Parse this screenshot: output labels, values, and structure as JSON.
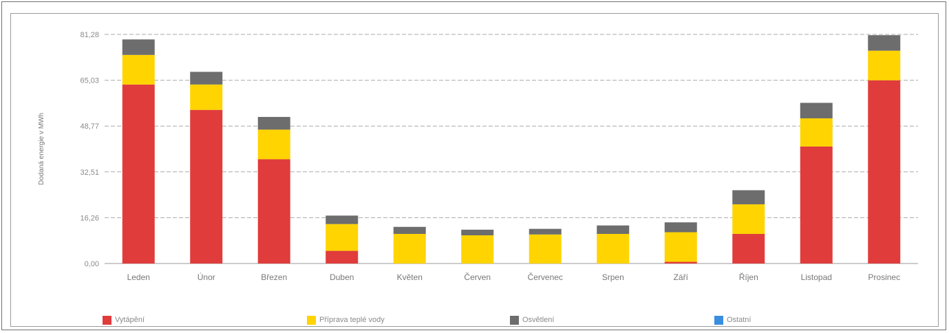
{
  "chart_data": {
    "type": "bar",
    "stacked": true,
    "title": "",
    "xlabel": "",
    "ylabel": "Dodaná energie v MWh",
    "ylim": [
      0,
      81.28
    ],
    "yticks": [
      "0,00",
      "16,26",
      "32,51",
      "48,77",
      "65,03",
      "81,28"
    ],
    "grid": true,
    "legend_position": "bottom",
    "categories": [
      "Leden",
      "Únor",
      "Březen",
      "Duben",
      "Květen",
      "Červen",
      "Červenec",
      "Srpen",
      "Září",
      "Říjen",
      "Listopad",
      "Prosinec"
    ],
    "series": [
      {
        "name": "Vytápění",
        "color": "#e03c3c",
        "values": [
          63.5,
          54.5,
          37.0,
          4.5,
          0.0,
          0.0,
          0.0,
          0.0,
          0.6,
          10.5,
          41.5,
          65.0
        ]
      },
      {
        "name": "Příprava teplé vody",
        "color": "#ffd400",
        "values": [
          10.5,
          9.0,
          10.5,
          9.5,
          10.5,
          10.0,
          10.3,
          10.5,
          10.5,
          10.5,
          10.0,
          10.5
        ]
      },
      {
        "name": "Osvětlení",
        "color": "#6d6d6d",
        "values": [
          5.5,
          4.5,
          4.5,
          3.0,
          2.5,
          2.0,
          2.0,
          3.0,
          3.5,
          5.0,
          5.5,
          5.5
        ]
      },
      {
        "name": "Ostatní",
        "color": "#3a8ee0",
        "values": [
          0,
          0,
          0,
          0,
          0,
          0,
          0,
          0,
          0,
          0,
          0,
          0
        ]
      }
    ]
  }
}
